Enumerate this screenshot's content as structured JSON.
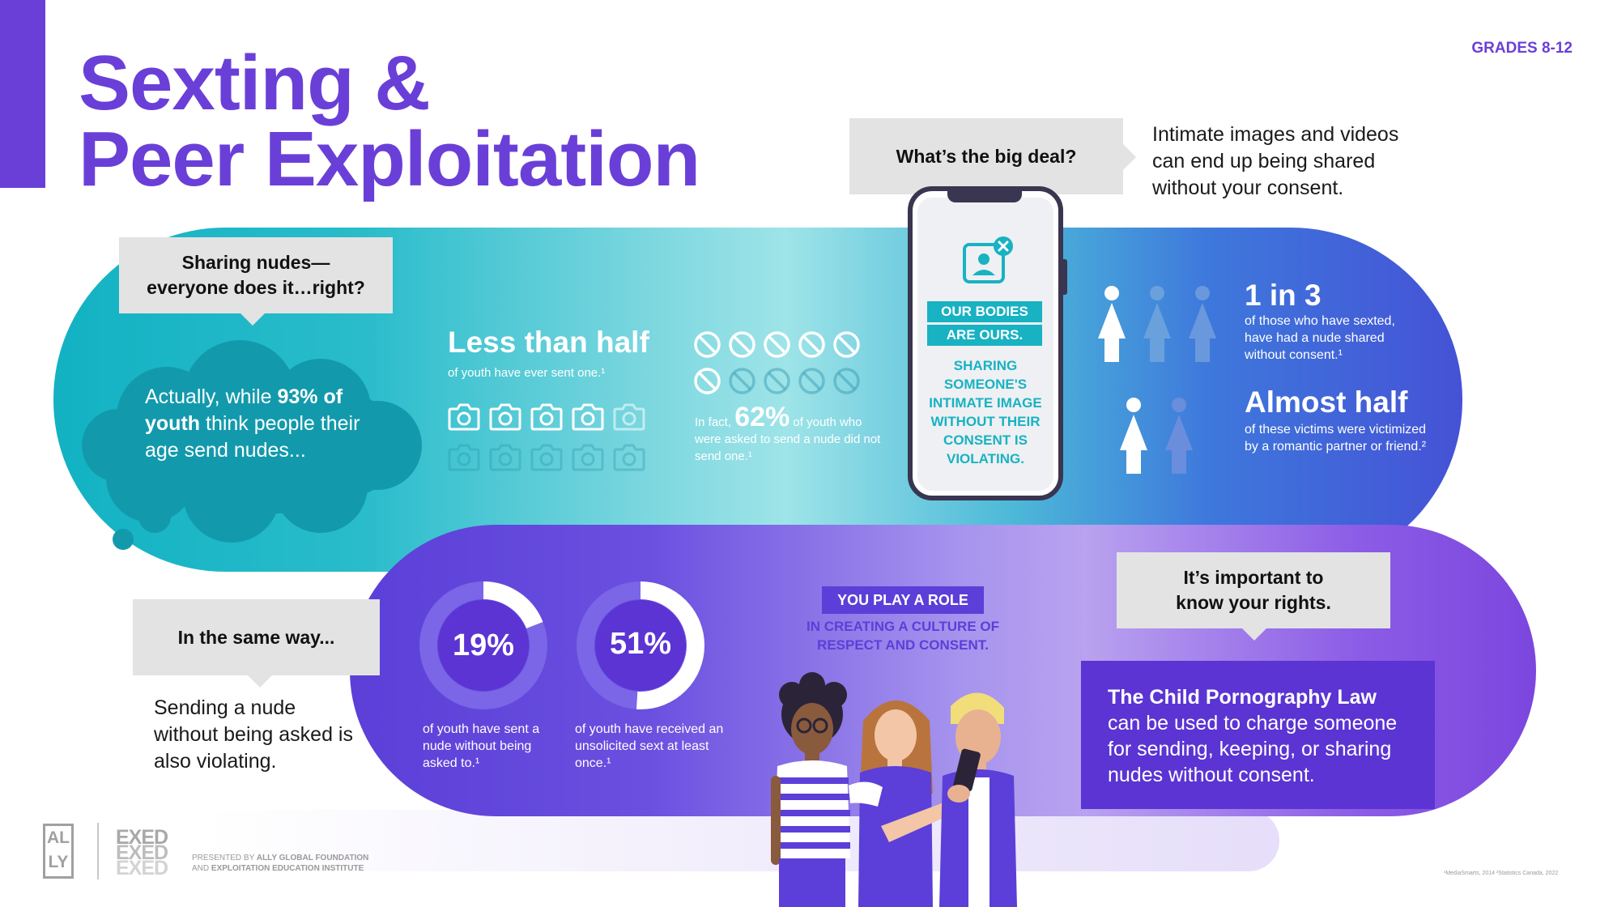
{
  "header": {
    "title_line1": "Sexting &",
    "title_line2": "Peer Exploitation",
    "grades": "GRADES 8-12",
    "accent_color": "#6a3fd8"
  },
  "callouts": {
    "sharing_nudes": "Sharing nudes—\neveryone does it…right?",
    "big_deal": "What’s the big deal?",
    "same_way": "In the same way...",
    "know_rights": "It’s important to\nknow your rights."
  },
  "big_deal_text": "Intimate images and videos can end up being shared without your consent.",
  "cloud": {
    "prefix": "Actually, while ",
    "highlight": "93% of youth",
    "suffix": " think people their age send nudes..."
  },
  "less_than_half": {
    "heading": "Less than half",
    "subtext": "of youth have ever sent one.¹",
    "icon": "camera-icon"
  },
  "sixty_two": {
    "prefix": "In fact, ",
    "value": "62%",
    "suffix": " of youth who were asked to send a nude did not send one.¹",
    "icon": "no-symbol-icon"
  },
  "phone": {
    "line1": "OUR BODIES",
    "line2": "ARE OURS.",
    "message": "SHARING SOMEONE'S INTIMATE IMAGE WITHOUT THEIR CONSENT IS VIOLATING."
  },
  "stats_right": {
    "one_in_three": "1 in 3",
    "one_in_three_text": "of those who have sexted, have had a nude shared without consent.¹",
    "almost_half": "Almost half",
    "almost_half_text": "of these victims were victimized by a romantic partner or friend.²"
  },
  "same_way_text": "Sending a nude without being asked is also violating.",
  "donuts": [
    {
      "value": "19%",
      "fraction": 0.19,
      "text": "of youth have sent a nude without being asked to.¹"
    },
    {
      "value": "51%",
      "fraction": 0.51,
      "text": "of youth have received an unsolicited sext at least once.¹"
    }
  ],
  "role": {
    "badge": "YOU PLAY A ROLE",
    "text": "IN CREATING A CULTURE OF RESPECT AND CONSENT."
  },
  "law": {
    "title": "The Child Pornography Law",
    "text": "can be used to charge someone for sending, keeping, or sharing nudes without consent."
  },
  "footer": {
    "ally_logo": "AL\nLY",
    "exed_logo": "EXED",
    "presented_prefix": "PRESENTED BY ",
    "presented_org1": "ALLY GLOBAL FOUNDATION",
    "presented_mid": "AND ",
    "presented_org2": "EXPLOITATION EDUCATION INSTITUTE",
    "sources": "¹MediaSmarts, 2014   ²Statistics Canada, 2022"
  },
  "colors": {
    "teal": "#18b2c2",
    "purple": "#5b3fd8",
    "callout_gray": "#e3e3e3"
  }
}
